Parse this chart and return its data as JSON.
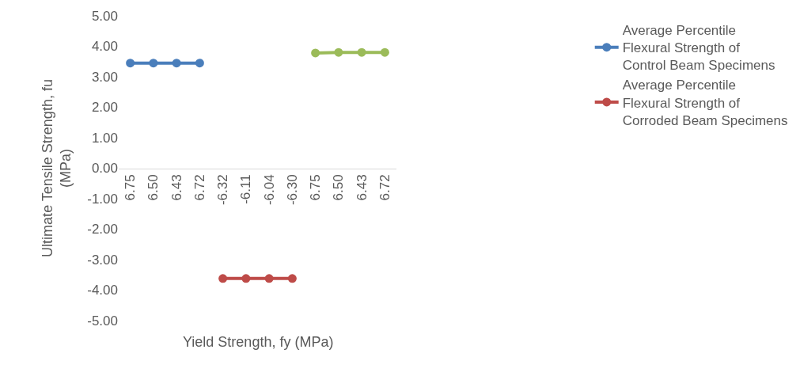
{
  "chart_data": {
    "type": "line",
    "xlabel": "Yield Strength, fy (MPa)",
    "ylabel": "Ultimate Tensile Strength, fu (MPa)",
    "categories": [
      "6.75",
      "6.50",
      "6.43",
      "6.72",
      "-6.32",
      "-6.11",
      "-6.04",
      "-6.30",
      "6.75",
      "6.50",
      "6.43",
      "6.72"
    ],
    "series": [
      {
        "name": "Average Percentile Flexural Strength of Control Beam Specimens",
        "color": "#4a7ebb",
        "values": [
          3.45,
          3.45,
          3.45,
          3.45,
          null,
          null,
          null,
          null,
          null,
          null,
          null,
          null
        ]
      },
      {
        "name": "Average Percentile Flexural Strength of Corroded Beam Specimens",
        "color": "#be4b48",
        "values": [
          null,
          null,
          null,
          null,
          -3.62,
          -3.62,
          -3.62,
          -3.62,
          null,
          null,
          null,
          null
        ]
      },
      {
        "color": "#9bbb59",
        "values": [
          null,
          null,
          null,
          null,
          null,
          null,
          null,
          null,
          3.78,
          3.8,
          3.8,
          3.8
        ]
      }
    ],
    "ylim": [
      -5,
      5
    ],
    "yticks": [
      {
        "value": -5,
        "label": "-5.00"
      },
      {
        "value": -4,
        "label": "-4.00"
      },
      {
        "value": -3,
        "label": "-3.00"
      },
      {
        "value": -2,
        "label": "-2.00"
      },
      {
        "value": -1,
        "label": "-1.00"
      },
      {
        "value": 0,
        "label": "0.00"
      },
      {
        "value": 1,
        "label": "1.00"
      },
      {
        "value": 2,
        "label": "2.00"
      },
      {
        "value": 3,
        "label": "3.00"
      },
      {
        "value": 4,
        "label": "4.00"
      },
      {
        "value": 5,
        "label": "5.00"
      }
    ],
    "marker": "circle",
    "line_style": "solid",
    "legend": "right"
  }
}
